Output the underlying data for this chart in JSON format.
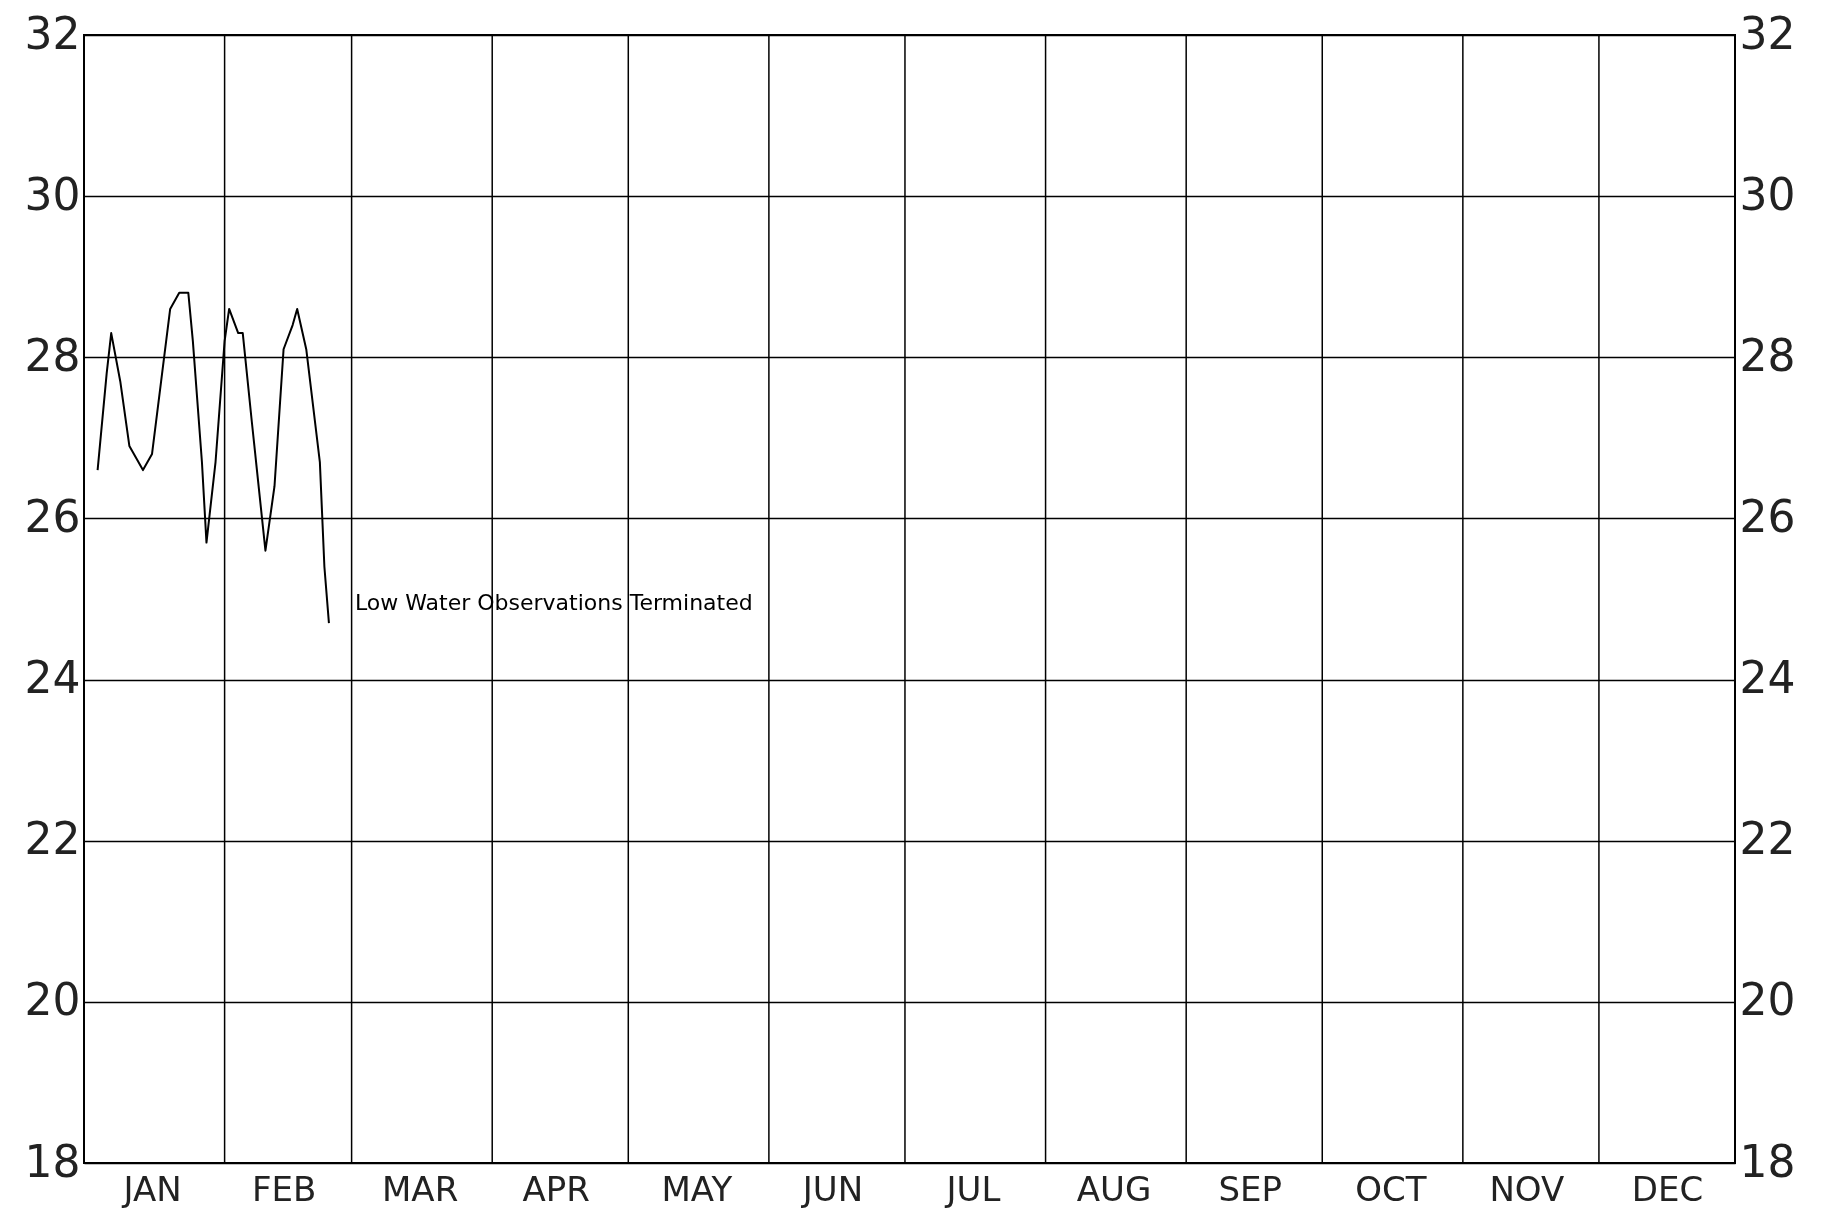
{
  "chart_data": {
    "type": "line",
    "x": [
      "--01-04",
      "--01-06",
      "--01-07",
      "--01-09",
      "--01-11",
      "--01-14",
      "--01-16",
      "--01-18",
      "--01-20",
      "--01-22",
      "--01-24",
      "--01-25",
      "--01-27",
      "--01-28",
      "--01-30",
      "--02-01",
      "--02-02",
      "--02-04",
      "--02-05",
      "--02-07",
      "--02-10",
      "--02-12",
      "--02-14",
      "--02-16",
      "--02-17",
      "--02-19",
      "--02-22",
      "--02-23",
      "--02-24"
    ],
    "series": [
      {
        "color": "#000000",
        "values": [
          26.6,
          27.8,
          28.3,
          27.7,
          26.9,
          26.6,
          26.8,
          27.7,
          28.6,
          28.8,
          28.8,
          28.2,
          26.7,
          25.7,
          26.7,
          28.2,
          28.6,
          28.3,
          28.3,
          27.2,
          25.6,
          26.4,
          28.1,
          28.4,
          28.6,
          28.1,
          26.7,
          25.4,
          24.7
        ]
      }
    ],
    "xlim": [
      "--01-01",
      "--12-31"
    ],
    "xticks": [
      {
        "value": "--01-01",
        "label": null
      },
      {
        "value": "--02-01",
        "label": null
      },
      {
        "value": "--03-01",
        "label": null
      },
      {
        "value": "--04-01",
        "label": null
      },
      {
        "value": "--05-01",
        "label": null
      },
      {
        "value": "--06-01",
        "label": null
      },
      {
        "value": "--07-01",
        "label": null
      },
      {
        "value": "--08-01",
        "label": null
      },
      {
        "value": "--09-01",
        "label": null
      },
      {
        "value": "--10-01",
        "label": null
      },
      {
        "value": "--11-01",
        "label": null
      },
      {
        "value": "--12-01",
        "label": null
      },
      {
        "value": "--12-31",
        "label": null
      },
      {
        "value": "--01-16",
        "label": "JAN"
      },
      {
        "value": "--02-14",
        "label": "FEB"
      },
      {
        "value": "--03-16",
        "label": "MAR"
      },
      {
        "value": "--04-15",
        "label": "APR"
      },
      {
        "value": "--05-16",
        "label": "MAY"
      },
      {
        "value": "--06-15",
        "label": "JUN"
      },
      {
        "value": "--07-16",
        "label": "JUL"
      },
      {
        "value": "--08-16",
        "label": "AUG"
      },
      {
        "value": "--09-15",
        "label": "SEP"
      },
      {
        "value": "--10-16",
        "label": "OCT"
      },
      {
        "value": "--11-15",
        "label": "NOV"
      },
      {
        "value": "--12-16",
        "label": "DEC"
      }
    ],
    "ylim": [
      18,
      32
    ],
    "yticks": [
      18,
      20,
      22,
      24,
      26,
      28,
      30,
      32
    ],
    "y2lim": [
      18,
      32
    ],
    "y2ticks": [
      18,
      20,
      22,
      24,
      26,
      28,
      30,
      32
    ],
    "grid": true,
    "line_style": "solid",
    "marker": "none",
    "annotations": [
      "Low Water Observations Terminated"
    ]
  }
}
